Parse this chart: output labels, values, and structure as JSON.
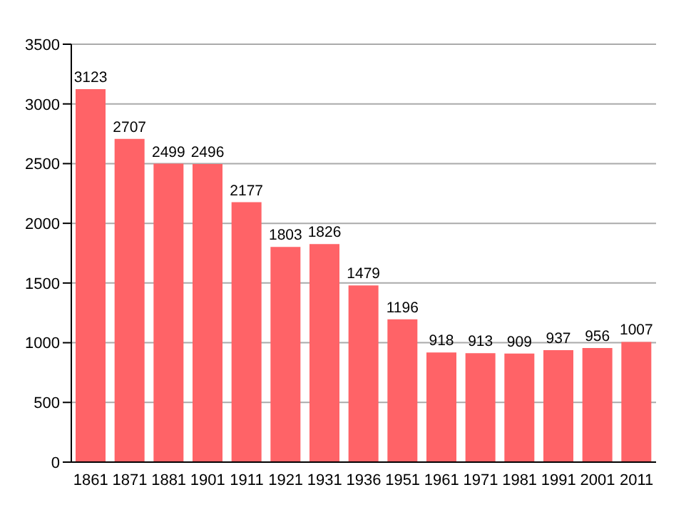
{
  "chart_data": {
    "type": "bar",
    "categories": [
      "1861",
      "1871",
      "1881",
      "1901",
      "1911",
      "1921",
      "1931",
      "1936",
      "1951",
      "1961",
      "1971",
      "1981",
      "1991",
      "2001",
      "2011"
    ],
    "values": [
      3123,
      2707,
      2499,
      2496,
      2177,
      1803,
      1826,
      1479,
      1196,
      918,
      913,
      909,
      937,
      956,
      1007
    ],
    "color": "#ff6367",
    "ylim": [
      0,
      3500
    ],
    "yticks": [
      0,
      500,
      1000,
      1500,
      2000,
      2500,
      3000,
      3500
    ],
    "grid": "y",
    "data_labels": true
  }
}
